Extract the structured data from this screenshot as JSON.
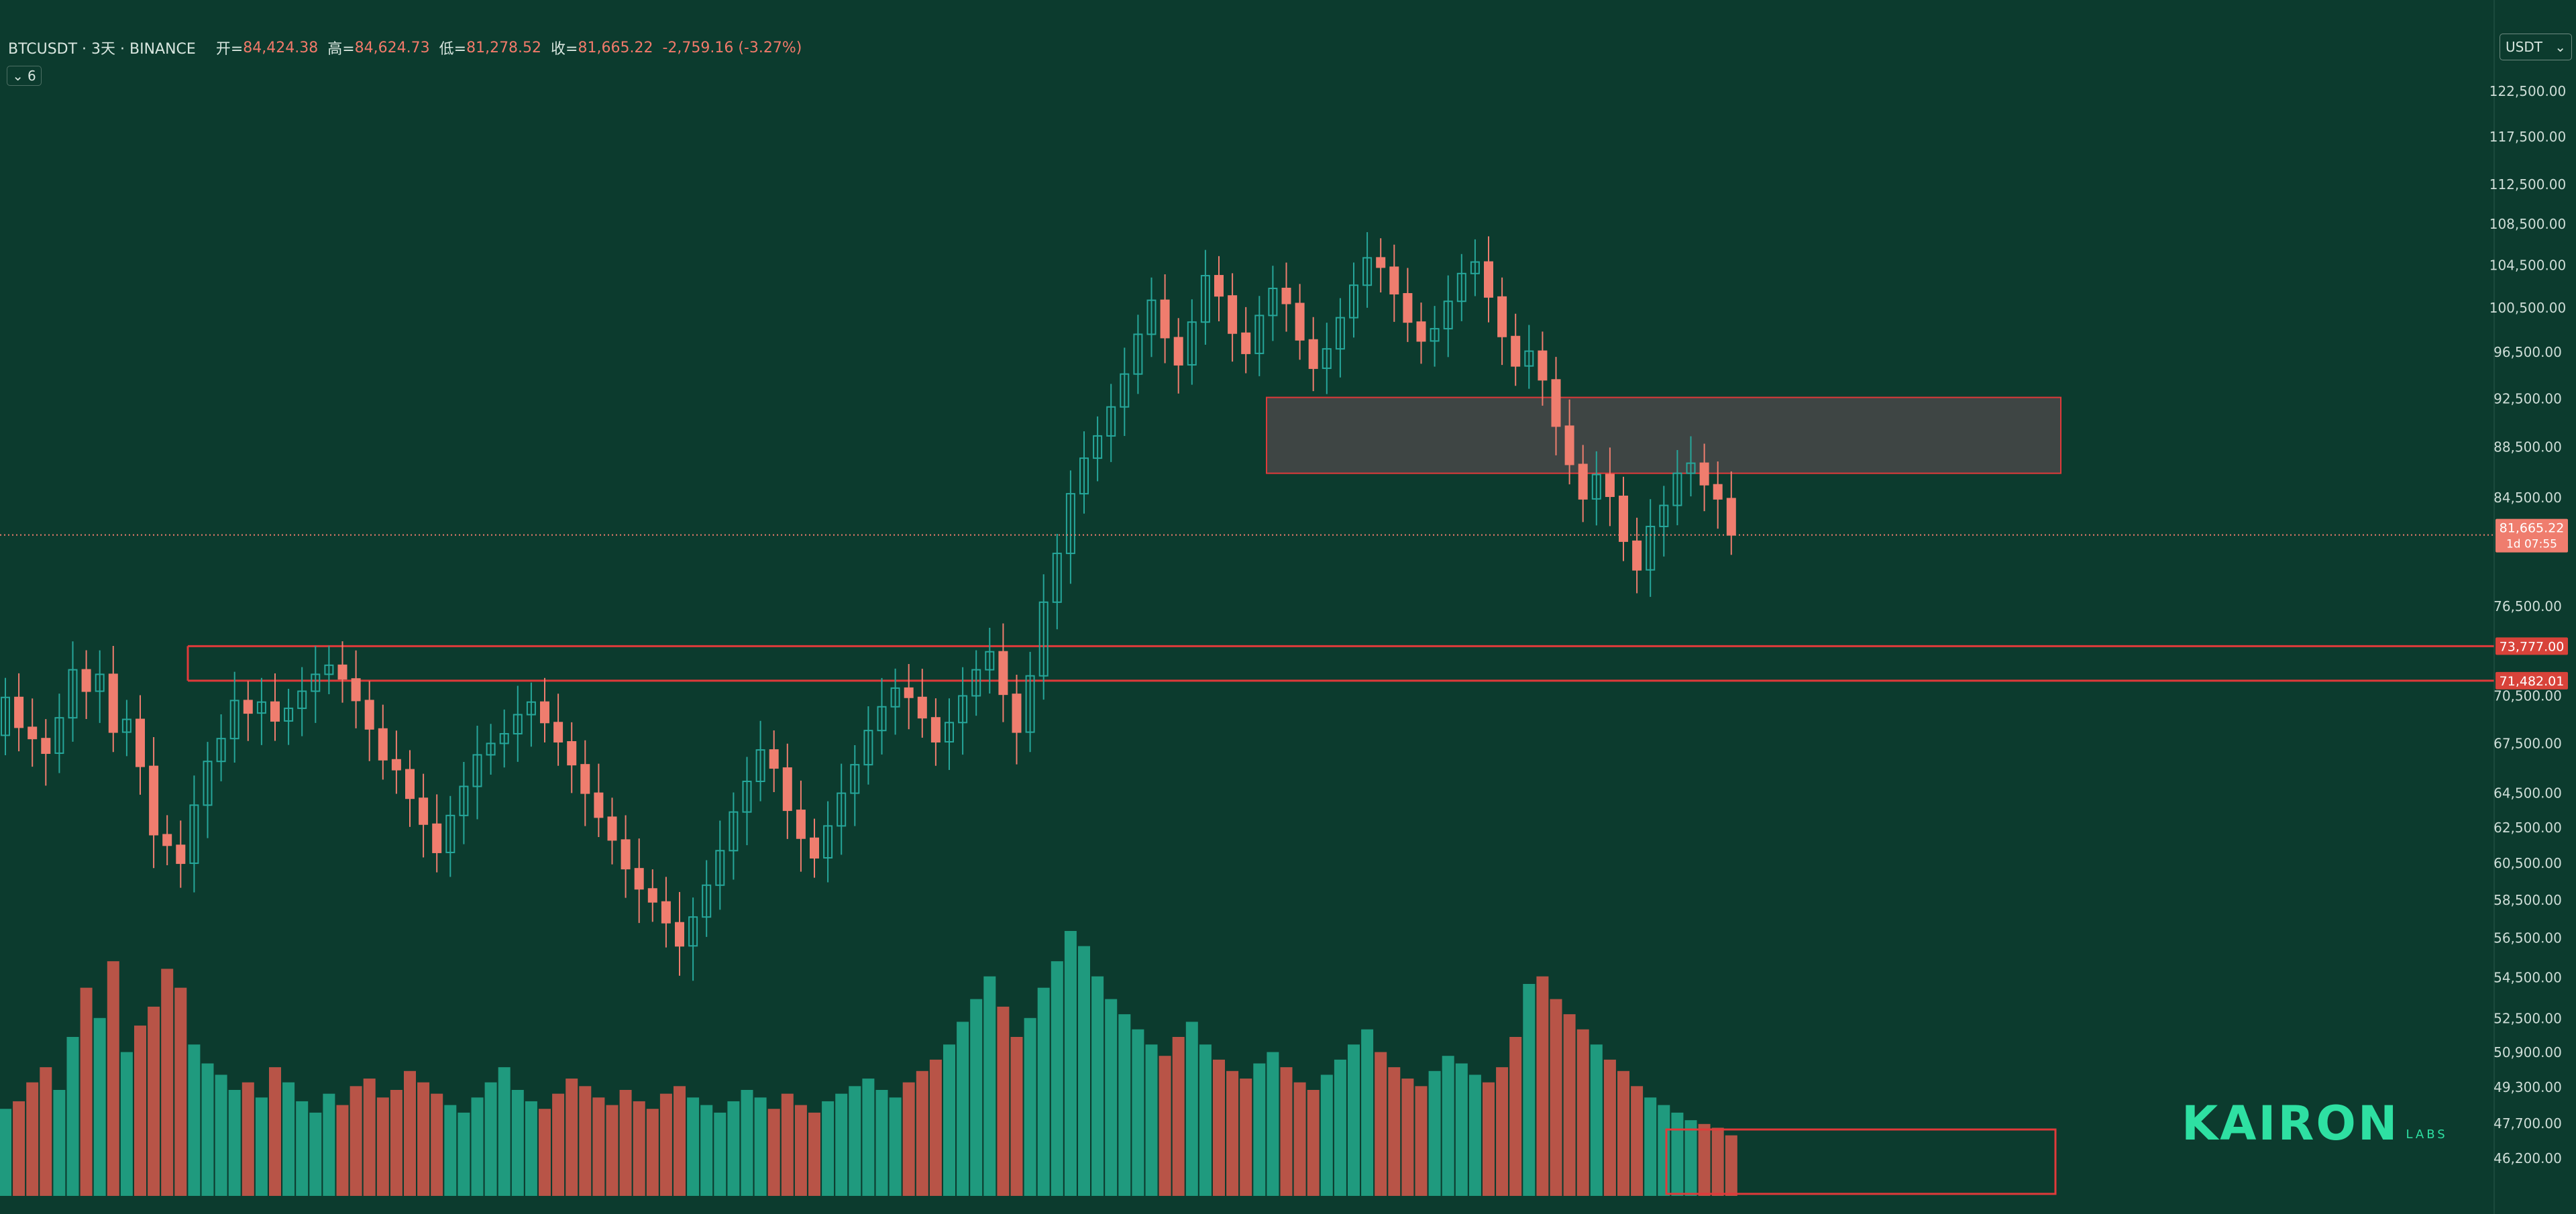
{
  "legend": {
    "symbol": "BTCUSDT · 3天 · BINANCE",
    "open_label": "开=",
    "open": "84,424.38",
    "high_label": "高=",
    "high": "84,624.73",
    "low_label": "低=",
    "low": "81,278.52",
    "close_label": "收=",
    "close": "81,665.22",
    "change": "-2,759.16 (-3.27%)"
  },
  "indicator_toggle": {
    "icon": "chevron-down-icon",
    "count": "6"
  },
  "currency": {
    "selected": "USDT",
    "icon": "chevron-down-icon"
  },
  "logo": {
    "word": "KAIRON",
    "sub": "LABS"
  },
  "colors": {
    "background": "#0c3b2e",
    "up": "#26a69a",
    "down": "#ef7d6e",
    "volume_up": "#1f9a7e",
    "volume_down": "#b85447",
    "line_red": "#e03a3a",
    "zone_fill": "#484848",
    "logo": "#2ee0a2"
  },
  "chart_data": {
    "type": "candlestick",
    "title": "",
    "xlabel": "",
    "ylabel": "",
    "ylim": [
      45000,
      126000
    ],
    "y_ticks": [
      "46,200.00",
      "47,700.00",
      "49,300.00",
      "50,900.00",
      "52,500.00",
      "54,500.00",
      "56,500.00",
      "58,500.00",
      "60,500.00",
      "62,500.00",
      "64,500.00",
      "67,500.00",
      "70,500.00",
      "76,500.00",
      "84,500.00",
      "88,500.00",
      "92,500.00",
      "96,500.00",
      "100,500.00",
      "104,500.00",
      "108,500.00",
      "112,500.00",
      "117,500.00",
      "122,500.00"
    ],
    "candle_closes": [
      70400,
      68500,
      67800,
      66900,
      69100,
      72200,
      70800,
      71900,
      68200,
      69000,
      66100,
      62100,
      61500,
      60500,
      63800,
      66400,
      67800,
      70200,
      69400,
      70100,
      68900,
      69700,
      70800,
      71900,
      72500,
      71600,
      70200,
      68400,
      66500,
      65900,
      64200,
      62700,
      61100,
      63200,
      64900,
      66800,
      67500,
      68100,
      69300,
      70100,
      68800,
      67600,
      66200,
      64500,
      63100,
      61800,
      60200,
      59100,
      58400,
      57300,
      56100,
      57600,
      59300,
      61200,
      63400,
      65200,
      67100,
      66000,
      63500,
      61900,
      60800,
      62600,
      64500,
      66200,
      68300,
      69800,
      71000,
      70400,
      69100,
      67600,
      68800,
      70500,
      72200,
      73400,
      70600,
      68200,
      71800,
      76800,
      80300,
      84800,
      87600,
      89400,
      91800,
      94600,
      98100,
      101200,
      97800,
      95400,
      99200,
      103500,
      101600,
      98200,
      96400,
      99800,
      102300,
      100900,
      97600,
      95100,
      96800,
      99600,
      102600,
      105200,
      104300,
      101800,
      99200,
      97500,
      98600,
      101100,
      103700,
      104800,
      101500,
      97900,
      95300,
      96600,
      94100,
      90200,
      87100,
      84400,
      86300,
      84600,
      81200,
      79100,
      82300,
      83900,
      86400,
      87200,
      85500,
      84400,
      81665
    ],
    "candle_opens": [
      68000,
      70400,
      68500,
      67800,
      66900,
      69100,
      72200,
      70800,
      71900,
      68200,
      69000,
      66100,
      62100,
      61500,
      60500,
      63800,
      66400,
      67800,
      70200,
      69400,
      70100,
      68900,
      69700,
      70800,
      71900,
      72500,
      71600,
      70200,
      68400,
      66500,
      65900,
      64200,
      62700,
      61100,
      63200,
      64900,
      66800,
      67500,
      68100,
      69300,
      70100,
      68800,
      67600,
      66200,
      64500,
      63100,
      61800,
      60200,
      59100,
      58400,
      57300,
      56100,
      57600,
      59300,
      61200,
      63400,
      65200,
      67100,
      66000,
      63500,
      61900,
      60800,
      62600,
      64500,
      66200,
      68300,
      69800,
      71000,
      70400,
      69100,
      67600,
      68800,
      70500,
      72200,
      73400,
      70600,
      68200,
      71800,
      76800,
      80300,
      84800,
      87600,
      89400,
      91800,
      94600,
      98100,
      101200,
      97800,
      95400,
      99200,
      103500,
      101600,
      98200,
      96400,
      99800,
      102300,
      100900,
      97600,
      95100,
      96800,
      99600,
      102600,
      105200,
      104300,
      101800,
      99200,
      97500,
      98600,
      101100,
      103700,
      104800,
      101500,
      97900,
      95300,
      96600,
      94100,
      90200,
      87100,
      84400,
      86300,
      84600,
      81200,
      79100,
      82300,
      83900,
      86400,
      87200,
      85500,
      84424
    ],
    "candle_volumes": [
      0.23,
      0.25,
      0.3,
      0.34,
      0.28,
      0.42,
      0.55,
      0.47,
      0.62,
      0.38,
      0.45,
      0.5,
      0.6,
      0.55,
      0.4,
      0.35,
      0.32,
      0.28,
      0.3,
      0.26,
      0.34,
      0.3,
      0.25,
      0.22,
      0.27,
      0.24,
      0.29,
      0.31,
      0.26,
      0.28,
      0.33,
      0.3,
      0.27,
      0.24,
      0.22,
      0.26,
      0.3,
      0.34,
      0.28,
      0.25,
      0.23,
      0.27,
      0.31,
      0.29,
      0.26,
      0.24,
      0.28,
      0.25,
      0.23,
      0.27,
      0.29,
      0.26,
      0.24,
      0.22,
      0.25,
      0.28,
      0.26,
      0.23,
      0.27,
      0.24,
      0.22,
      0.25,
      0.27,
      0.29,
      0.31,
      0.28,
      0.26,
      0.3,
      0.33,
      0.36,
      0.4,
      0.46,
      0.52,
      0.58,
      0.5,
      0.42,
      0.47,
      0.55,
      0.62,
      0.7,
      0.66,
      0.58,
      0.52,
      0.48,
      0.44,
      0.4,
      0.37,
      0.42,
      0.46,
      0.4,
      0.36,
      0.33,
      0.31,
      0.35,
      0.38,
      0.34,
      0.3,
      0.28,
      0.32,
      0.36,
      0.4,
      0.44,
      0.38,
      0.34,
      0.31,
      0.29,
      0.33,
      0.37,
      0.35,
      0.32,
      0.3,
      0.34,
      0.42,
      0.56,
      0.58,
      0.52,
      0.48,
      0.44,
      0.4,
      0.36,
      0.33,
      0.29,
      0.26,
      0.24,
      0.22,
      0.2,
      0.19,
      0.18,
      0.16
    ],
    "last_price_label": "81,665.22",
    "countdown_label": "1d 07:55",
    "horizontal_levels": [
      {
        "price": 73777,
        "label": "73,777.00"
      },
      {
        "price": 71482.01,
        "label": "71,482.01"
      }
    ],
    "resistance_zone": {
      "price_top": 92600,
      "price_bottom": 86400
    },
    "volume_highlight_box": true,
    "grid": false,
    "legend_position": "top-left"
  }
}
